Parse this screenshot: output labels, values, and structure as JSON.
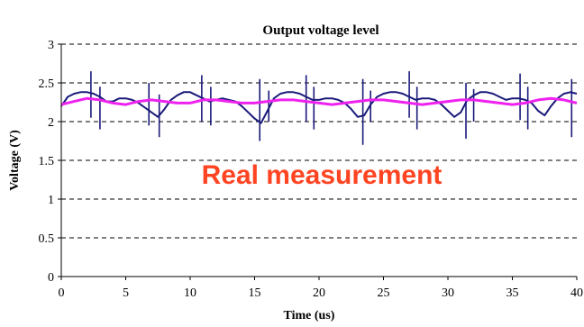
{
  "chart_data": {
    "type": "line",
    "title": "Output voltage level",
    "xlabel": "Time (us)",
    "ylabel": "Voltage (V)",
    "xlim": [
      0,
      40
    ],
    "ylim": [
      0,
      3
    ],
    "x_ticks": [
      "0",
      "5",
      "10",
      "15",
      "20",
      "25",
      "30",
      "35",
      "40"
    ],
    "y_ticks": [
      "0",
      "0.5",
      "1",
      "1.5",
      "2",
      "2.5",
      "3"
    ],
    "grid": "horizontal-dashed",
    "legend": "none",
    "annotation": "Real measurement",
    "series": [
      {
        "color": "#1a1a7a",
        "x": [
          0,
          0.5,
          1,
          1.5,
          2,
          2.5,
          3,
          3.5,
          4,
          4.5,
          5,
          5.5,
          6,
          6.5,
          7,
          7.5,
          8,
          8.5,
          9,
          9.5,
          10,
          10.5,
          11,
          11.5,
          12,
          12.5,
          13,
          13.5,
          14,
          14.5,
          15,
          15.5,
          16,
          16.5,
          17,
          17.5,
          18,
          18.5,
          19,
          19.5,
          20,
          20.5,
          21,
          21.5,
          22,
          22.5,
          23,
          23.5,
          24,
          24.5,
          25,
          25.5,
          26,
          26.5,
          27,
          27.5,
          28,
          28.5,
          29,
          29.5,
          30,
          30.5,
          31,
          31.5,
          32,
          32.5,
          33,
          33.5,
          34,
          34.5,
          35,
          35.5,
          36,
          36.5,
          37,
          37.5,
          38,
          38.5,
          39,
          39.5,
          40
        ],
        "values": [
          2.2,
          2.32,
          2.36,
          2.38,
          2.38,
          2.36,
          2.32,
          2.26,
          2.26,
          2.3,
          2.3,
          2.28,
          2.24,
          2.18,
          2.12,
          2.06,
          2.16,
          2.28,
          2.34,
          2.38,
          2.38,
          2.34,
          2.3,
          2.26,
          2.28,
          2.3,
          2.28,
          2.26,
          2.2,
          2.12,
          2.04,
          1.98,
          2.14,
          2.3,
          2.36,
          2.38,
          2.38,
          2.36,
          2.32,
          2.28,
          2.28,
          2.3,
          2.3,
          2.28,
          2.24,
          2.16,
          2.06,
          2.08,
          2.22,
          2.32,
          2.36,
          2.38,
          2.38,
          2.36,
          2.32,
          2.28,
          2.3,
          2.3,
          2.28,
          2.22,
          2.14,
          2.06,
          2.12,
          2.28,
          2.34,
          2.38,
          2.38,
          2.36,
          2.32,
          2.28,
          2.3,
          2.3,
          2.28,
          2.24,
          2.14,
          2.08,
          2.2,
          2.3,
          2.36,
          2.38,
          2.36
        ]
      },
      {
        "color": "#ee22ee",
        "x": [
          0,
          1,
          2,
          3,
          4,
          5,
          6,
          7,
          8,
          9,
          10,
          11,
          12,
          13,
          14,
          15,
          16,
          17,
          18,
          19,
          20,
          21,
          22,
          23,
          24,
          25,
          26,
          27,
          28,
          29,
          30,
          31,
          32,
          33,
          34,
          35,
          36,
          37,
          38,
          39,
          40
        ],
        "values": [
          2.22,
          2.26,
          2.3,
          2.28,
          2.24,
          2.22,
          2.26,
          2.28,
          2.26,
          2.24,
          2.24,
          2.28,
          2.28,
          2.26,
          2.24,
          2.24,
          2.26,
          2.28,
          2.28,
          2.26,
          2.24,
          2.22,
          2.24,
          2.26,
          2.28,
          2.28,
          2.26,
          2.24,
          2.22,
          2.24,
          2.26,
          2.28,
          2.28,
          2.26,
          2.24,
          2.22,
          2.24,
          2.28,
          2.3,
          2.28,
          2.24
        ]
      }
    ],
    "spikes": [
      {
        "x": 2.3,
        "high": 2.65,
        "low": 2.05
      },
      {
        "x": 3.0,
        "high": 2.45,
        "low": 1.9
      },
      {
        "x": 6.8,
        "high": 2.5,
        "low": 1.95
      },
      {
        "x": 7.6,
        "high": 2.35,
        "low": 1.8
      },
      {
        "x": 10.9,
        "high": 2.6,
        "low": 2.0
      },
      {
        "x": 11.6,
        "high": 2.45,
        "low": 1.95
      },
      {
        "x": 15.4,
        "high": 2.55,
        "low": 1.75
      },
      {
        "x": 16.1,
        "high": 2.4,
        "low": 2.0
      },
      {
        "x": 19.0,
        "high": 2.6,
        "low": 2.0
      },
      {
        "x": 19.6,
        "high": 2.45,
        "low": 1.9
      },
      {
        "x": 23.4,
        "high": 2.55,
        "low": 1.7
      },
      {
        "x": 24.0,
        "high": 2.4,
        "low": 2.0
      },
      {
        "x": 27.0,
        "high": 2.65,
        "low": 2.05
      },
      {
        "x": 27.6,
        "high": 2.45,
        "low": 1.9
      },
      {
        "x": 31.4,
        "high": 2.5,
        "low": 1.78
      },
      {
        "x": 32.0,
        "high": 2.42,
        "low": 2.0
      },
      {
        "x": 35.6,
        "high": 2.62,
        "low": 2.02
      },
      {
        "x": 36.2,
        "high": 2.45,
        "low": 1.9
      },
      {
        "x": 39.6,
        "high": 2.55,
        "low": 1.8
      }
    ]
  }
}
